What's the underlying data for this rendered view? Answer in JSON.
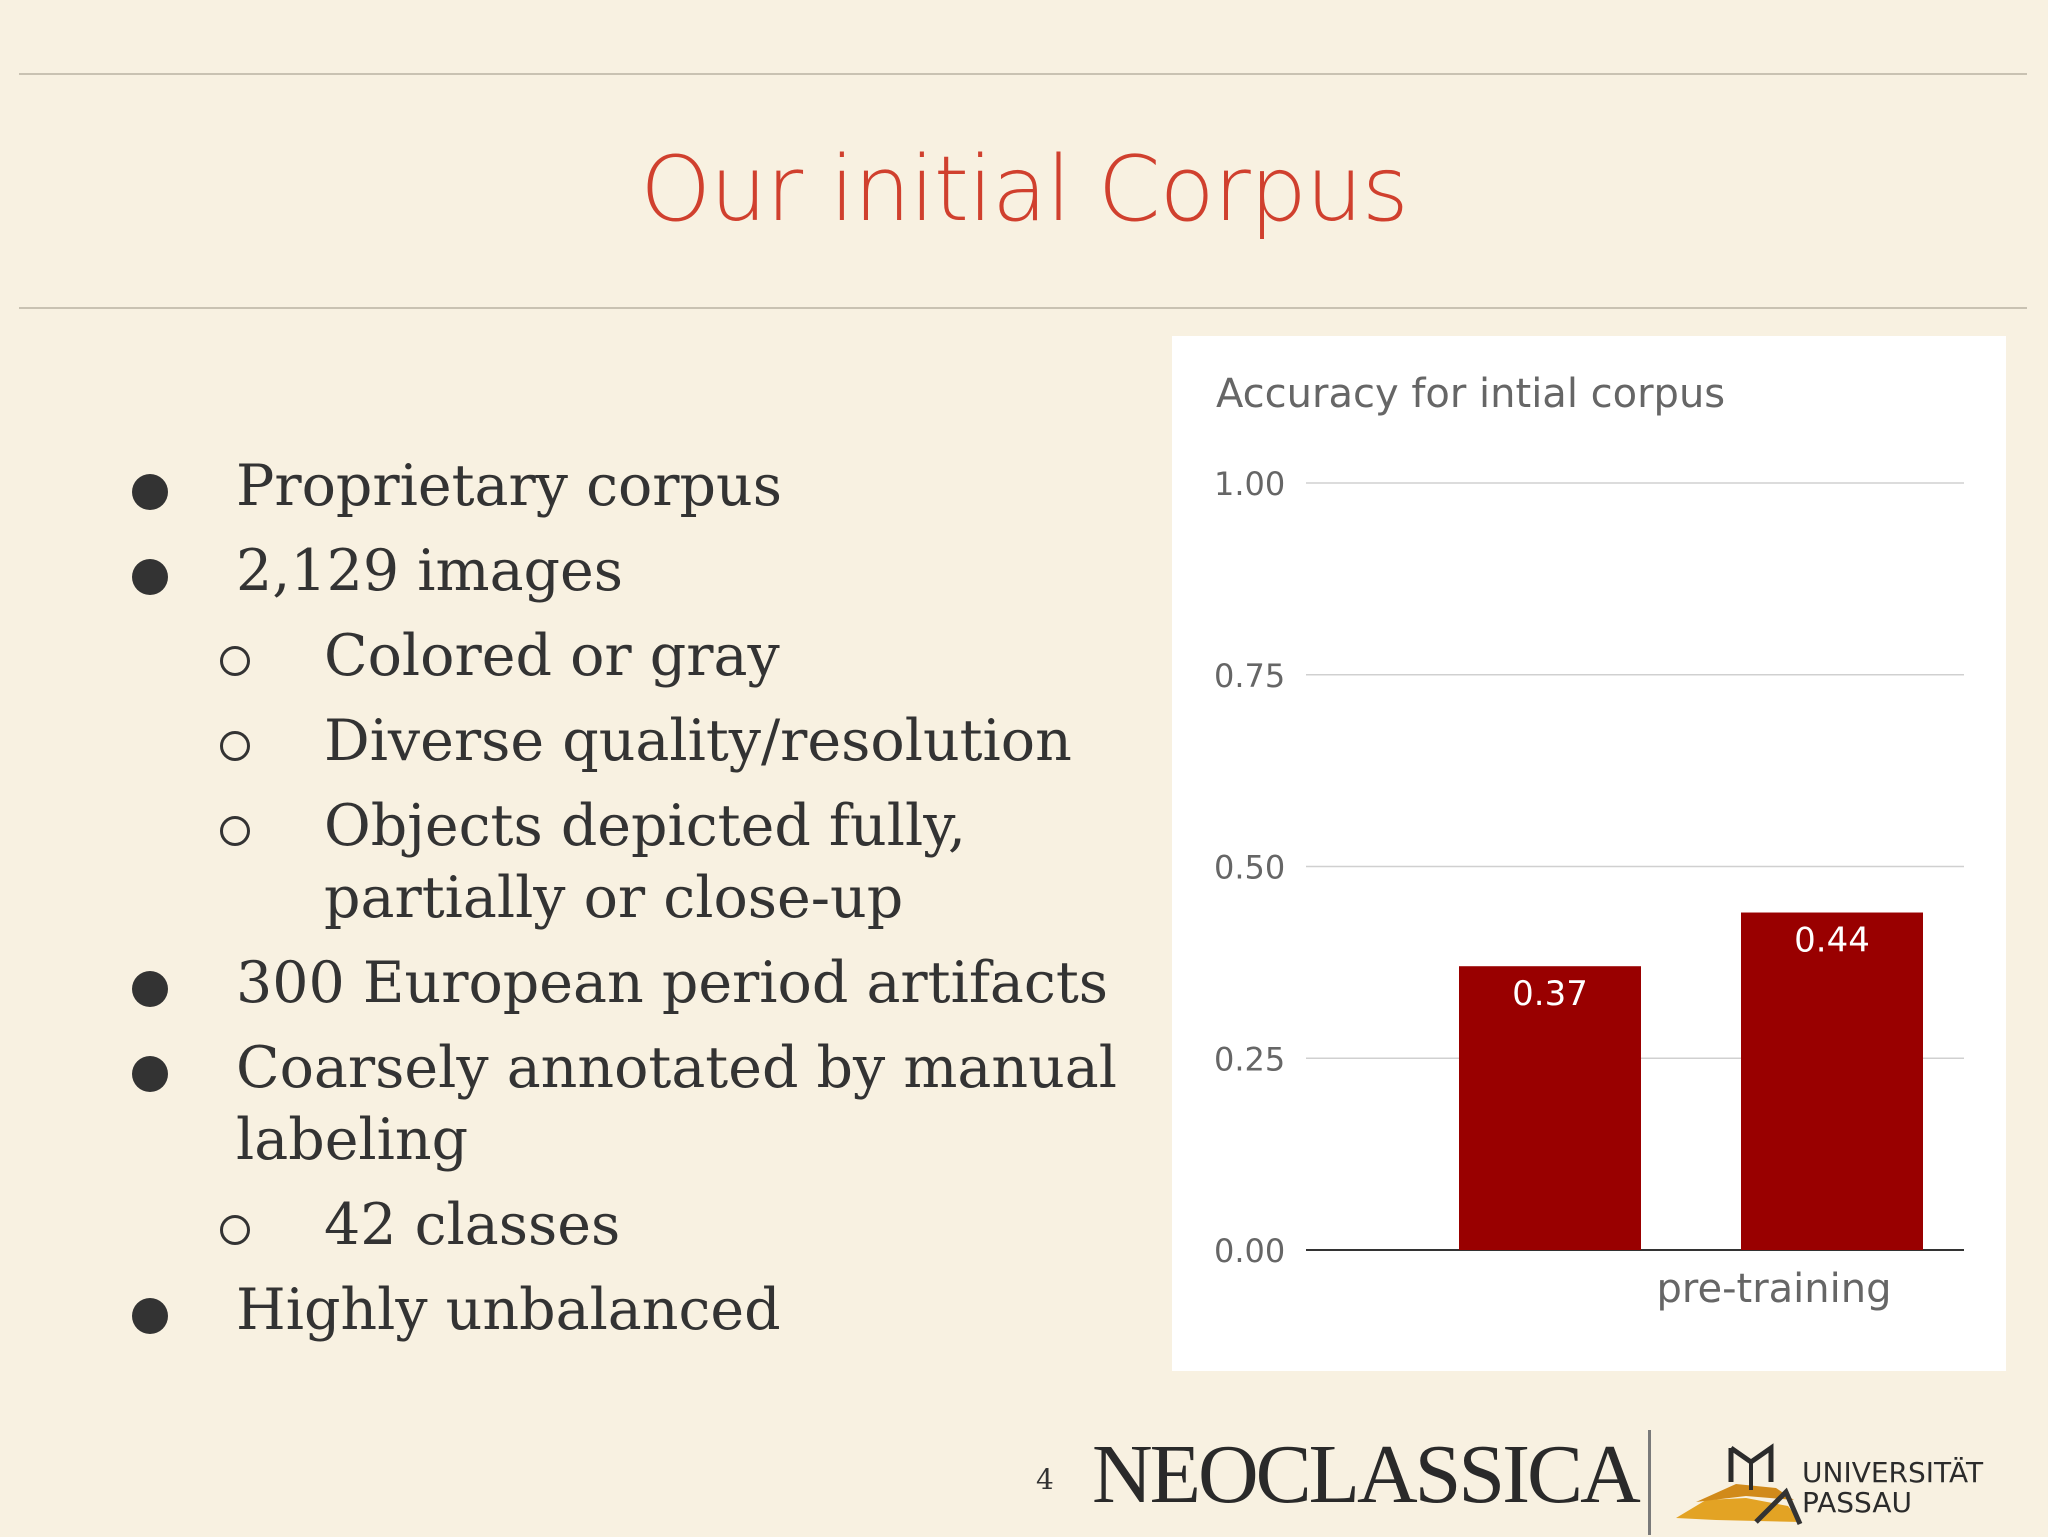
{
  "slide": {
    "title": "Our initial Corpus",
    "page_number": "4"
  },
  "bullets": [
    {
      "level": 1,
      "text": "Proprietary corpus"
    },
    {
      "level": 1,
      "text": "2,129 images"
    },
    {
      "level": 2,
      "text": "Colored or gray"
    },
    {
      "level": 2,
      "text": "Diverse quality/resolution"
    },
    {
      "level": 2,
      "text": "Objects depicted fully, partially or close-up"
    },
    {
      "level": 1,
      "text": "300 European period artifacts"
    },
    {
      "level": 1,
      "text": "Coarsely annotated by manual labeling"
    },
    {
      "level": 2,
      "text": "42 classes"
    },
    {
      "level": 1,
      "text": "Highly unbalanced"
    }
  ],
  "chart_data": {
    "type": "bar",
    "title": "Accuracy for intial corpus",
    "categories": [
      "pre-training"
    ],
    "series": [
      {
        "values": [
          0.37
        ],
        "data_labels": [
          "0.37"
        ]
      },
      {
        "values": [
          0.44
        ],
        "data_labels": [
          "0.44"
        ]
      }
    ],
    "ylim": [
      0,
      1
    ],
    "yticks": [
      "0.00",
      "0.25",
      "0.50",
      "0.75",
      "1.00"
    ],
    "grid": true,
    "bar_color": "#990000"
  },
  "logos": {
    "neoclassica": "NEOCLASSICA",
    "university_line1": "UNIVERSITÄT",
    "university_line2": "PASSAU"
  }
}
